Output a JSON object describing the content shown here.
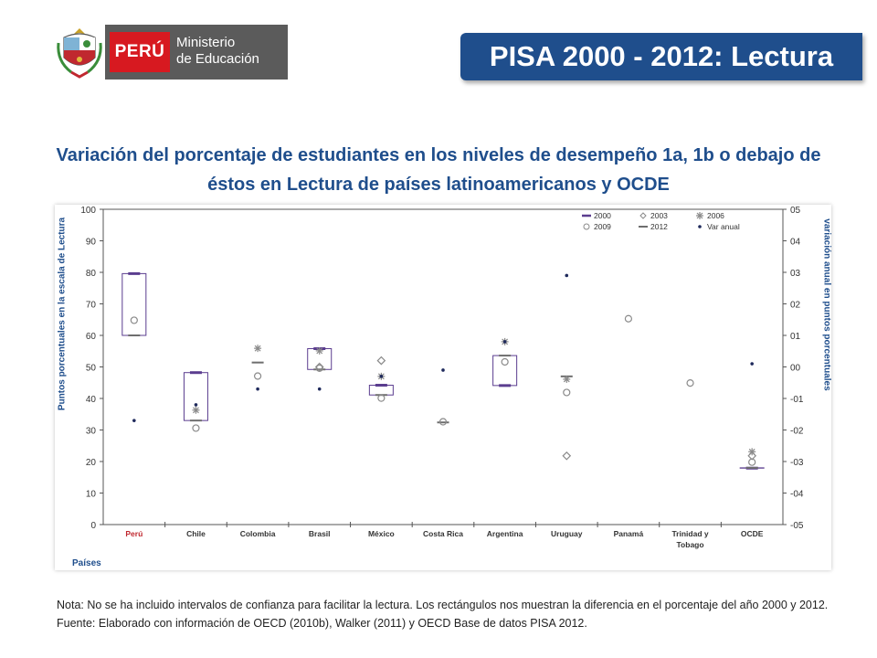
{
  "header": {
    "logo_brand": "PERÚ",
    "logo_ministry": "Ministerio",
    "logo_ministry2": "de Educación",
    "slide_title": "PISA 2000 - 2012: Lectura"
  },
  "headline": "Variación del porcentaje de estudiantes en los niveles de desempeño 1a, 1b o debajo de éstos en Lectura de países latinoamericanos y OCDE",
  "notes": {
    "nota": "Nota: No se ha incluido intervalos de confianza para facilitar la lectura. Los rectángulos nos muestran la diferencia en el porcentaje del año 2000 y 2012.",
    "fuente": "Fuente: Elaborado con información de OECD (2010b), Walker (2011) y OECD Base de datos PISA 2012."
  },
  "colors": {
    "title_blue": "#1f4e8c",
    "series_2000": "#5b3d8f",
    "series_2012": "#6e6e6e",
    "markers": "#8a8a8a",
    "var_anual": "#1f2a5c",
    "peru_label": "#c0282f"
  },
  "chart_data": {
    "type": "box",
    "categories": [
      "Perú",
      "Chile",
      "Colombia",
      "Brasil",
      "México",
      "Costa Rica",
      "Argentina",
      "Uruguay",
      "Panamá",
      "Trinidad y Tobago",
      "OCDE"
    ],
    "xlabel": "Países",
    "ylabel": "Puntos porcentuales en la escala de Lectura",
    "ylabel_right": "variación anual en puntos porcentuales",
    "ylim": [
      0,
      100
    ],
    "yticks": [
      0,
      10,
      20,
      30,
      40,
      50,
      60,
      70,
      80,
      90,
      100
    ],
    "ylim_right": [
      -0.5,
      0.5
    ],
    "yticks_right": [
      "-05",
      "-04",
      "-03",
      "-02",
      "-01",
      "00",
      "01",
      "02",
      "03",
      "04",
      "05"
    ],
    "legend": [
      "2000",
      "2003",
      "2006",
      "2009",
      "2012",
      "Var anual"
    ],
    "legend_position": "top-right",
    "series": [
      {
        "name": "2000",
        "values": [
          79.6,
          48.2,
          null,
          55.8,
          44.2,
          null,
          44.1,
          null,
          null,
          null,
          17.9
        ]
      },
      {
        "name": "2003",
        "values": [
          null,
          null,
          null,
          50.0,
          52.0,
          null,
          null,
          21.8,
          null,
          null,
          21.8
        ]
      },
      {
        "name": "2006",
        "values": [
          null,
          36.3,
          55.9,
          55.1,
          47.0,
          null,
          58.0,
          46.1,
          null,
          null,
          23.1
        ]
      },
      {
        "name": "2009",
        "values": [
          64.8,
          30.6,
          47.1,
          49.6,
          40.1,
          32.6,
          51.6,
          41.9,
          65.3,
          44.9,
          19.8
        ]
      },
      {
        "name": "2012",
        "values": [
          60.0,
          33.0,
          51.4,
          49.2,
          41.1,
          32.4,
          53.6,
          47.0,
          null,
          null,
          18.0
        ]
      },
      {
        "name": "Var anual",
        "values": [
          -0.17,
          -0.12,
          -0.07,
          -0.07,
          -0.03,
          -0.01,
          0.08,
          0.29,
          null,
          null,
          0.01
        ]
      }
    ]
  }
}
